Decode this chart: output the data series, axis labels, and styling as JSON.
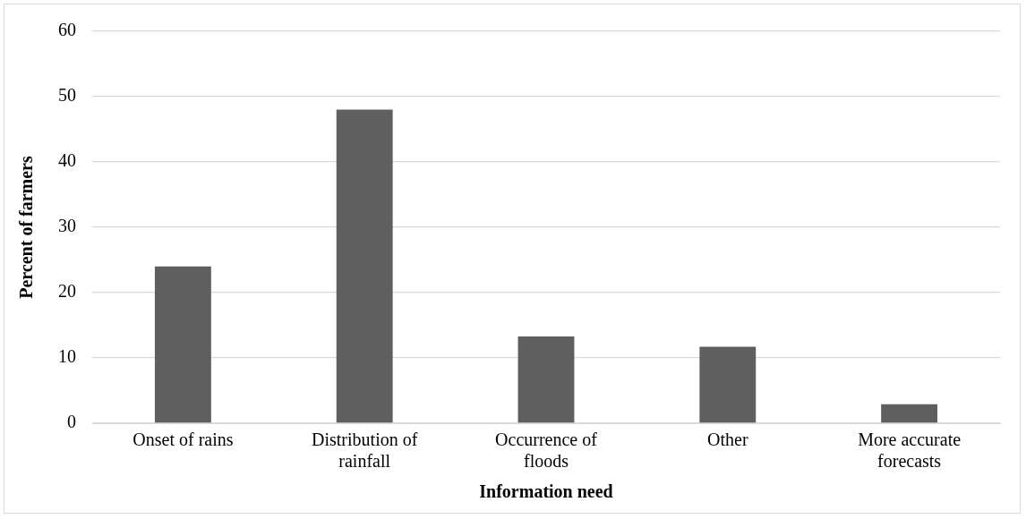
{
  "chart_data": {
    "type": "bar",
    "xlabel": "Information need",
    "ylabel": "Percent of farmers",
    "categories": [
      "Onset of rains",
      "Distribution of rainfall",
      "Occurrence of floods",
      "Other",
      "More accurate forecasts"
    ],
    "values": [
      24,
      48,
      13.3,
      11.7,
      2.9
    ],
    "color": "#5f5f5f",
    "ylim": [
      0,
      60
    ],
    "yticks": [
      0,
      10,
      20,
      30,
      40,
      50,
      60
    ],
    "grid": "y"
  }
}
